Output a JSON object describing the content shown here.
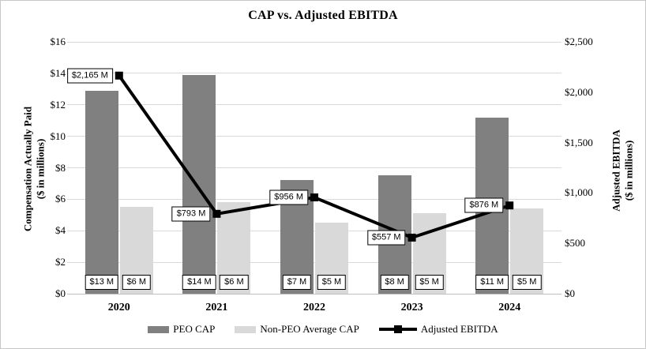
{
  "title": "CAP vs. Adjusted EBITDA",
  "left_axis": {
    "title_line1": "Compensation Actually Paid",
    "title_line2": "($ in millions)",
    "min": 0,
    "max": 16,
    "step": 2,
    "tick_labels": [
      "$0",
      "$2",
      "$4",
      "$6",
      "$8",
      "$10",
      "$12",
      "$14",
      "$16"
    ]
  },
  "right_axis": {
    "title_line1": "Adjusted EBITDA",
    "title_line2": "($ in millions)",
    "min": 0,
    "max": 2500,
    "step": 500,
    "tick_labels": [
      "$0",
      "$500",
      "$1,000",
      "$1,500",
      "$2,000",
      "$2,500"
    ]
  },
  "chart_data": {
    "type": "bar",
    "subtype": "grouped-bars-with-line-dual-axis",
    "title": "CAP vs. Adjusted EBITDA",
    "categories": [
      "2020",
      "2021",
      "2022",
      "2023",
      "2024"
    ],
    "series": [
      {
        "name": "PEO CAP",
        "type": "bar",
        "axis": "left",
        "color": "#808080",
        "values": [
          12.9,
          13.9,
          7.2,
          7.5,
          11.2
        ],
        "labels": [
          "$13 M",
          "$14 M",
          "$7 M",
          "$8 M",
          "$11 M"
        ]
      },
      {
        "name": "Non-PEO Average CAP",
        "type": "bar",
        "axis": "left",
        "color": "#d9d9d9",
        "values": [
          5.5,
          5.8,
          4.5,
          5.1,
          5.4
        ],
        "labels": [
          "$6 M",
          "$6 M",
          "$5 M",
          "$5 M",
          "$5 M"
        ]
      },
      {
        "name": "Adjusted EBITDA",
        "type": "line",
        "axis": "right",
        "color": "#000000",
        "marker": "square",
        "values": [
          2165,
          793,
          956,
          557,
          876
        ],
        "labels": [
          "$2,165 M",
          "$793 M",
          "$956 M",
          "$557 M",
          "$876 M"
        ]
      }
    ],
    "xlabel": "",
    "ylabel_left": "Compensation Actually Paid ($ in millions)",
    "ylabel_right": "Adjusted EBITDA ($ in millions)",
    "ylim_left": [
      0,
      16
    ],
    "ylim_right": [
      0,
      2500
    ],
    "grid": "horizontal",
    "legend_position": "bottom"
  },
  "colors": {
    "gridline": "#d9d9d9",
    "axis_line": "#bfbfbf",
    "label_box_fill": "#ffffff",
    "label_box_border": "#000000",
    "chart_border": "#c8c8c8"
  }
}
